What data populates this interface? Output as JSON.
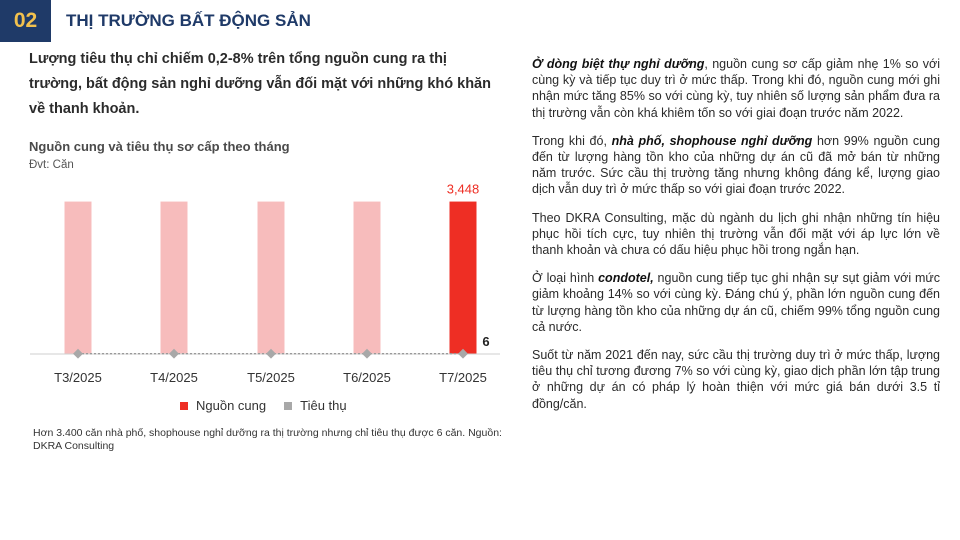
{
  "section": {
    "number": "02",
    "title": "THỊ TRƯỜNG BẤT ĐỘNG SẢN"
  },
  "headline": "Lượng tiêu thụ chỉ chiếm 0,2-8% trên tổng nguồn cung ra thị trường, bất động sản nghỉ dưỡng vẫn đối mặt với những khó khăn về thanh khoản.",
  "chart": {
    "title": "Nguồn cung và tiêu thụ sơ cấp theo tháng",
    "unit": "Đvt: Căn"
  },
  "chart_data": {
    "type": "bar",
    "categories": [
      "T3/2025",
      "T4/2025",
      "T5/2025",
      "T6/2025",
      "T7/2025"
    ],
    "series": [
      {
        "name": "Nguồn cung",
        "values": [
          3448,
          3448,
          3448,
          3448,
          3448
        ],
        "highlight_index": 4
      },
      {
        "name": "Tiêu thụ",
        "values": [
          6,
          6,
          6,
          6,
          6
        ]
      }
    ],
    "data_labels": {
      "supply_last": "3,448",
      "sales_last": "6"
    },
    "colors": {
      "supply": "#f7bcbc",
      "supply_highlight": "#ee2e24",
      "sales": "#a8a8a8"
    },
    "ylim": [
      0,
      3800
    ],
    "legend_position": "bottom"
  },
  "caption": "Hơn 3.400 căn nhà phố, shophouse nghỉ dưỡng ra thị trường nhưng chỉ tiêu thụ được 6 căn. Nguồn: DKRA Consulting",
  "paragraphs": [
    {
      "bold": "Ở dòng biệt thự nghỉ dưỡng",
      "lead": "",
      "text": ", nguồn cung sơ cấp giảm nhẹ 1% so với cùng kỳ và tiếp tục duy trì ở mức thấp. Trong khi đó, nguồn cung mới ghi nhận mức tăng 85% so với cùng kỳ, tuy nhiên số lượng sản phẩm đưa ra thị trường vẫn còn khá khiêm tốn so với giai đoạn trước năm 2022."
    },
    {
      "lead": "Trong khi đó, ",
      "bold": "nhà phố, shophouse nghỉ dưỡng",
      "text": " hơn 99% nguồn cung đến từ lượng hàng tồn kho của những dự án cũ đã mở bán từ những năm trước. Sức cầu thị trường tăng nhưng không đáng kể, lượng giao dịch vẫn duy trì ở mức thấp so với giai đoạn trước 2022."
    },
    {
      "lead": "",
      "bold": "",
      "text": "Theo DKRA Consulting, mặc dù ngành du lịch ghi nhận những tín hiệu phục hồi tích cực, tuy nhiên thị trường vẫn đối mặt với áp lực lớn về thanh khoản và chưa có dấu hiệu phục hồi trong ngắn hạn."
    },
    {
      "lead": "Ở loại hình ",
      "bold": "condotel,",
      "text": " nguồn cung tiếp tục ghi nhận sự sụt giảm với mức giảm khoảng 14% so với cùng kỳ. Đáng chú ý, phần lớn nguồn cung đến từ lượng hàng tồn kho của những dự án cũ, chiếm 99% tổng nguồn cung cả nước."
    },
    {
      "lead": "",
      "bold": "",
      "text": "Suốt từ năm 2021 đến nay, sức cầu thị trường duy trì ở mức thấp, lượng tiêu thụ chỉ tương đương 7% so với cùng kỳ, giao dịch phần lớn tập trung ở những dự án có pháp lý hoàn thiện với mức giá bán dưới 3.5 tỉ đồng/căn."
    }
  ]
}
